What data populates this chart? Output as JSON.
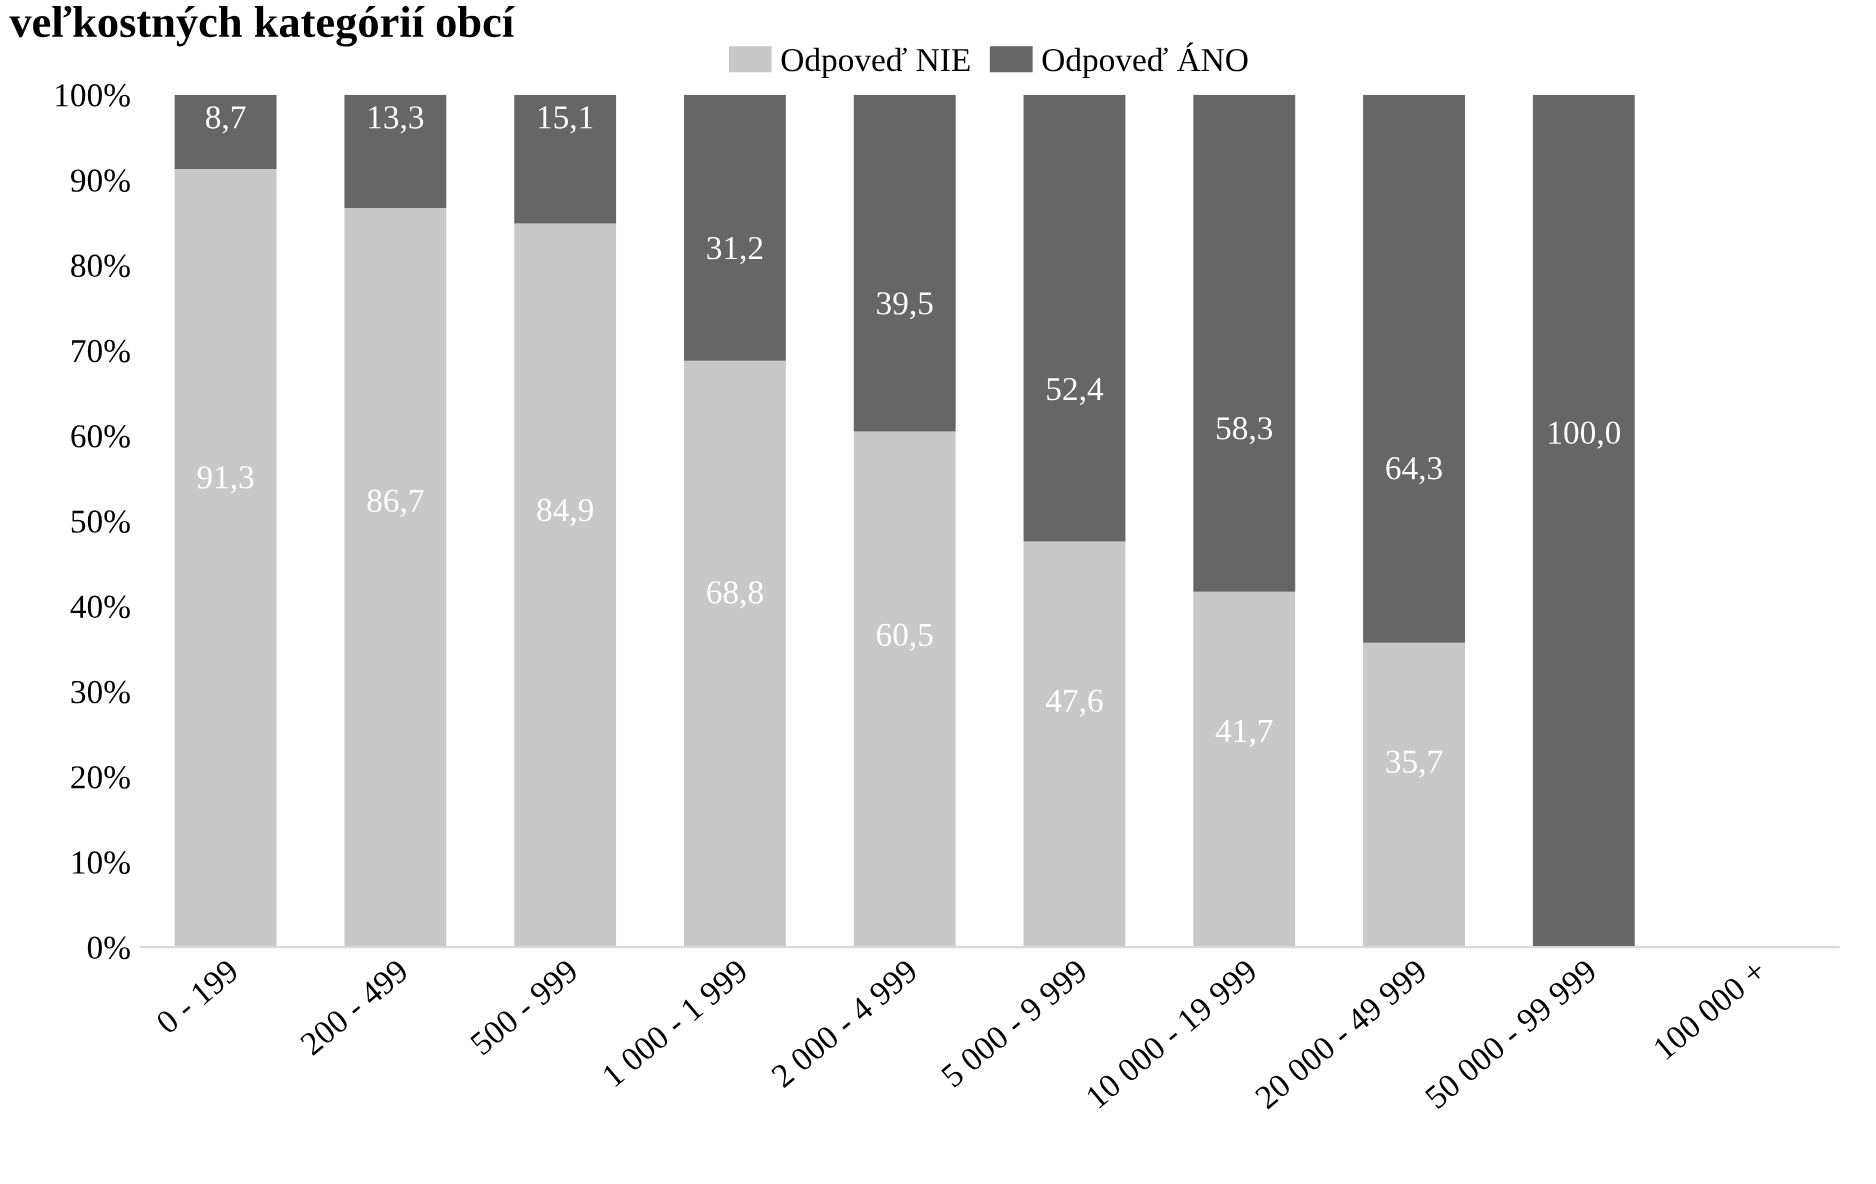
{
  "chart_data": {
    "type": "bar",
    "title": "veľkostných kategórií obcí",
    "stacked": true,
    "legend": "top",
    "categories": [
      "0 - 199",
      "200 - 499",
      "500 - 999",
      "1 000 - 1 999",
      "2 000 - 4 999",
      "5 000 - 9 999",
      "10 000 - 19 999",
      "20 000 - 49 999",
      "50 000 - 99 999",
      "100 000 +"
    ],
    "series": [
      {
        "name": "Odpoveď NIE",
        "color": "#c8c8c8",
        "values": [
          91.3,
          86.7,
          84.9,
          68.8,
          60.5,
          47.6,
          41.7,
          35.7,
          0,
          null
        ],
        "value_labels": [
          "91,3",
          "86,7",
          "84,9",
          "68,8",
          "60,5",
          "47,6",
          "41,7",
          "35,7",
          null,
          null
        ]
      },
      {
        "name": "Odpoveď ÁNO",
        "color": "#666666",
        "values": [
          8.7,
          13.3,
          15.1,
          31.2,
          39.5,
          52.4,
          58.3,
          64.3,
          100.0,
          null
        ],
        "value_labels": [
          "8,7",
          "13,3",
          "15,1",
          "31,2",
          "39,5",
          "52,4",
          "58,3",
          "64,3",
          "100,0",
          null
        ]
      }
    ],
    "ylim": [
      0,
      100
    ],
    "yticks": [
      {
        "value": 0,
        "label": "0%"
      },
      {
        "value": 10,
        "label": "10%"
      },
      {
        "value": 20,
        "label": "20%"
      },
      {
        "value": 30,
        "label": "30%"
      },
      {
        "value": 40,
        "label": "40%"
      },
      {
        "value": 50,
        "label": "50%"
      },
      {
        "value": 60,
        "label": "60%"
      },
      {
        "value": 70,
        "label": "70%"
      },
      {
        "value": 80,
        "label": "80%"
      },
      {
        "value": 90,
        "label": "90%"
      },
      {
        "value": 100,
        "label": "100%"
      }
    ]
  }
}
